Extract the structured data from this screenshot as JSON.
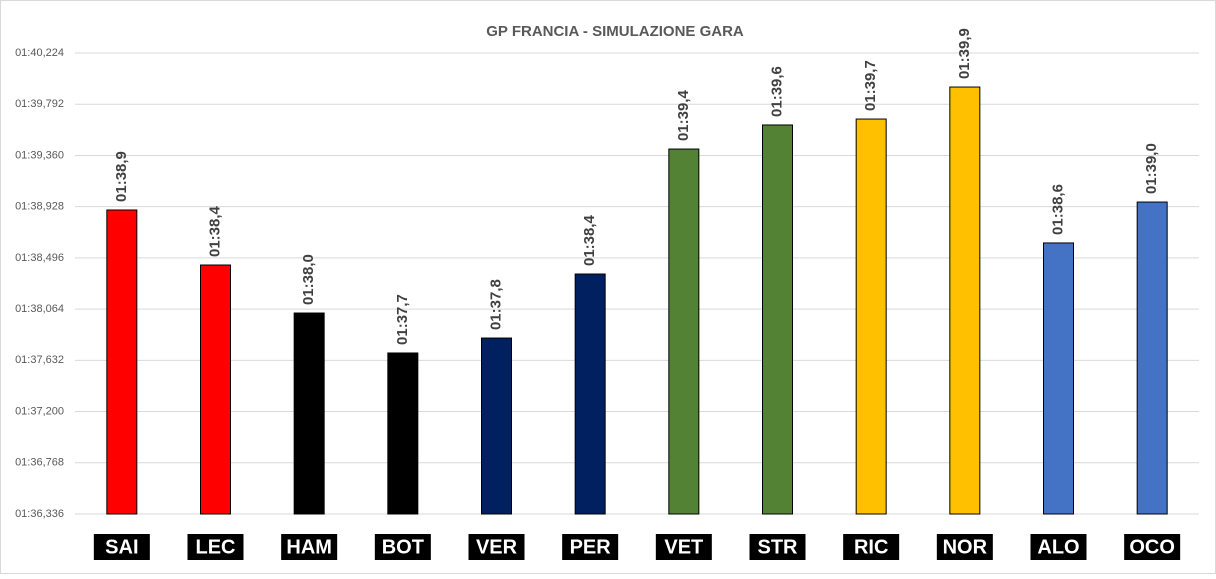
{
  "chart_data": {
    "type": "bar",
    "title": "GP FRANCIA - SIMULAZIONE GARA",
    "categories": [
      "SAI",
      "LEC",
      "HAM",
      "BOT",
      "VER",
      "PER",
      "VET",
      "STR",
      "RIC",
      "NOR",
      "ALO",
      "OCO"
    ],
    "values": [
      98.9,
      98.436,
      98.031,
      97.694,
      97.82,
      98.36,
      99.414,
      99.617,
      99.667,
      99.937,
      98.622,
      98.967
    ],
    "value_labels": [
      "01:38,9",
      "01:38,4",
      "01:38,0",
      "01:37,7",
      "01:37,8",
      "01:38,4",
      "01:39,4",
      "01:39,6",
      "01:39,7",
      "01:39,9",
      "01:38,6",
      "01:39,0"
    ],
    "colors": [
      "#ff0000",
      "#ff0000",
      "#000000",
      "#000000",
      "#002060",
      "#002060",
      "#548235",
      "#548235",
      "#ffc000",
      "#ffc000",
      "#4472c4",
      "#4472c4"
    ],
    "ylim": [
      96.336,
      100.224
    ],
    "yticks": [
      {
        "value": 96.336,
        "label": "01:36,336"
      },
      {
        "value": 96.768,
        "label": "01:36,768"
      },
      {
        "value": 97.2,
        "label": "01:37,200"
      },
      {
        "value": 97.632,
        "label": "01:37,632"
      },
      {
        "value": 98.064,
        "label": "01:38,064"
      },
      {
        "value": 98.496,
        "label": "01:38,496"
      },
      {
        "value": 98.928,
        "label": "01:38,928"
      },
      {
        "value": 99.36,
        "label": "01:39,360"
      },
      {
        "value": 99.792,
        "label": "01:39,792"
      },
      {
        "value": 100.224,
        "label": "01:40,224"
      }
    ],
    "grid": true
  }
}
